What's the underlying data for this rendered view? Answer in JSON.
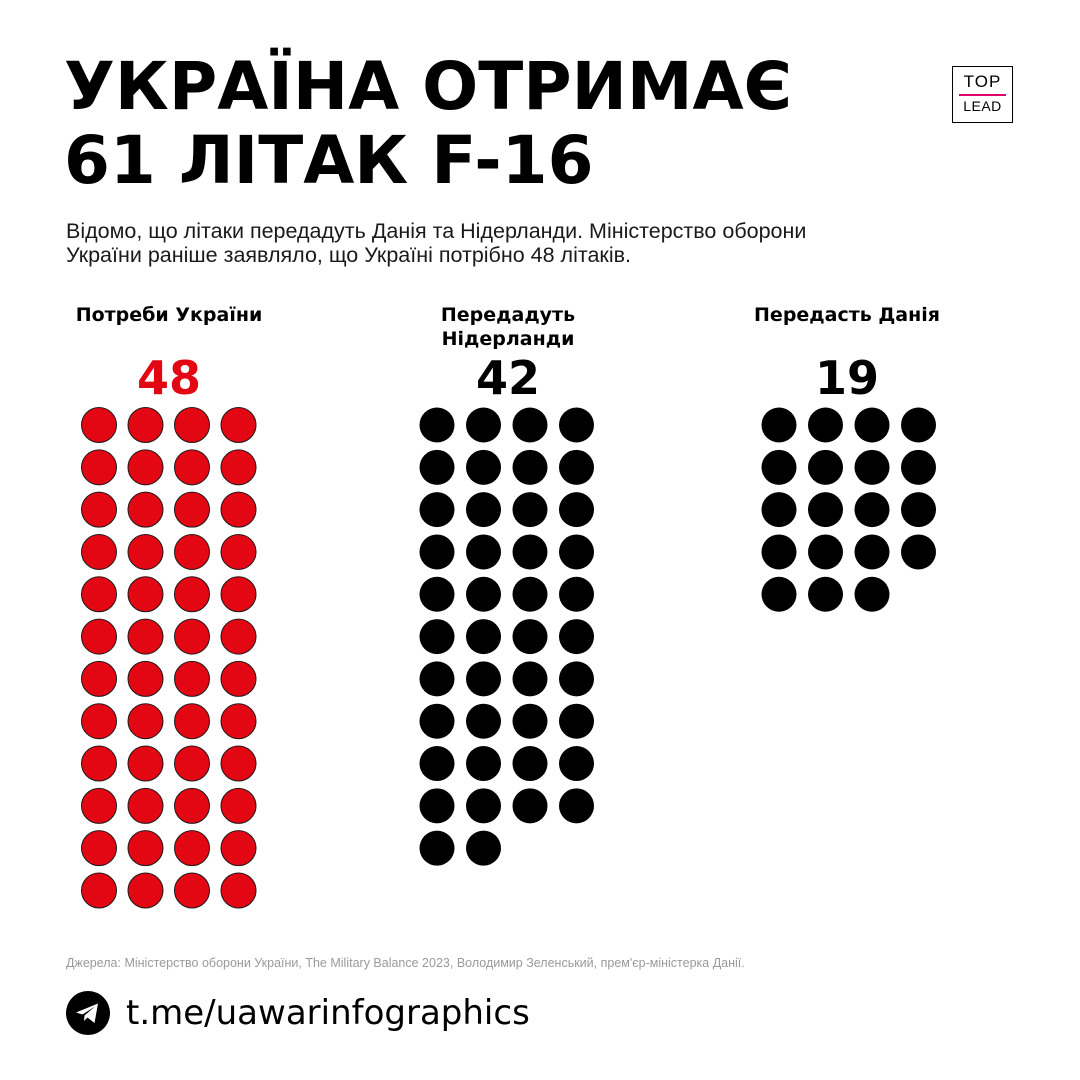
{
  "header": {
    "title_line1": "УКРАЇНА ОТРИМАЄ",
    "title_line2": "61 ЛІТАК F-16",
    "logo_top": "TOP",
    "logo_bottom": "LEAD",
    "subtitle_line1": "Відомо, що літаки передадуть Данія та Нідерланди. Міністерство оборони",
    "subtitle_line2": "України раніше заявляло, що Україні потрібно 48 літаків."
  },
  "chart_data": {
    "type": "pictogram",
    "unit": "F-16",
    "columns": [
      {
        "label_lines": [
          "Потреби України"
        ],
        "value": 48,
        "color": "#e30613"
      },
      {
        "label_lines": [
          "Передадуть",
          "Нідерланди"
        ],
        "value": 42,
        "color": "#000000"
      },
      {
        "label_lines": [
          "Передасть Данія"
        ],
        "value": 19,
        "color": "#000000"
      }
    ],
    "dots_per_row": 4
  },
  "footer": {
    "source": "Джерела: Міністерство оборони України, The Military Balance 2023, Володимир Зеленський,  прем'єр-міністерка Данії.",
    "link": "t.me/uawarinfographics",
    "icon": "telegram-icon"
  }
}
